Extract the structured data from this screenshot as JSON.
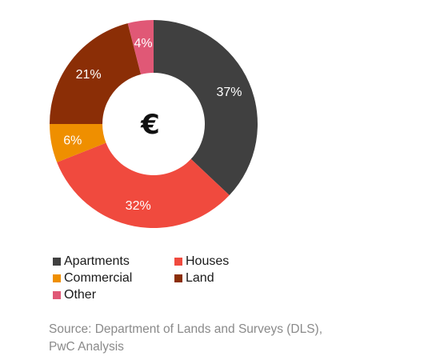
{
  "chart_data": {
    "type": "pie",
    "variant": "donut",
    "center_symbol": "€",
    "categories": [
      "Apartments",
      "Houses",
      "Commercial",
      "Land",
      "Other"
    ],
    "values": [
      37,
      32,
      6,
      21,
      4
    ],
    "labels": [
      "37%",
      "32%",
      "6%",
      "21%",
      "4%"
    ],
    "colors": [
      "#404040",
      "#f04a3e",
      "#ef8f00",
      "#8b2e06",
      "#e05876"
    ],
    "label_colors": [
      "#ffffff",
      "#ffffff",
      "#1a1a1a",
      "#ffffff",
      "#ffffff"
    ],
    "legend_position": "bottom",
    "source": [
      "Source: Department of Lands and Surveys (DLS),",
      "PwC Analysis"
    ]
  }
}
